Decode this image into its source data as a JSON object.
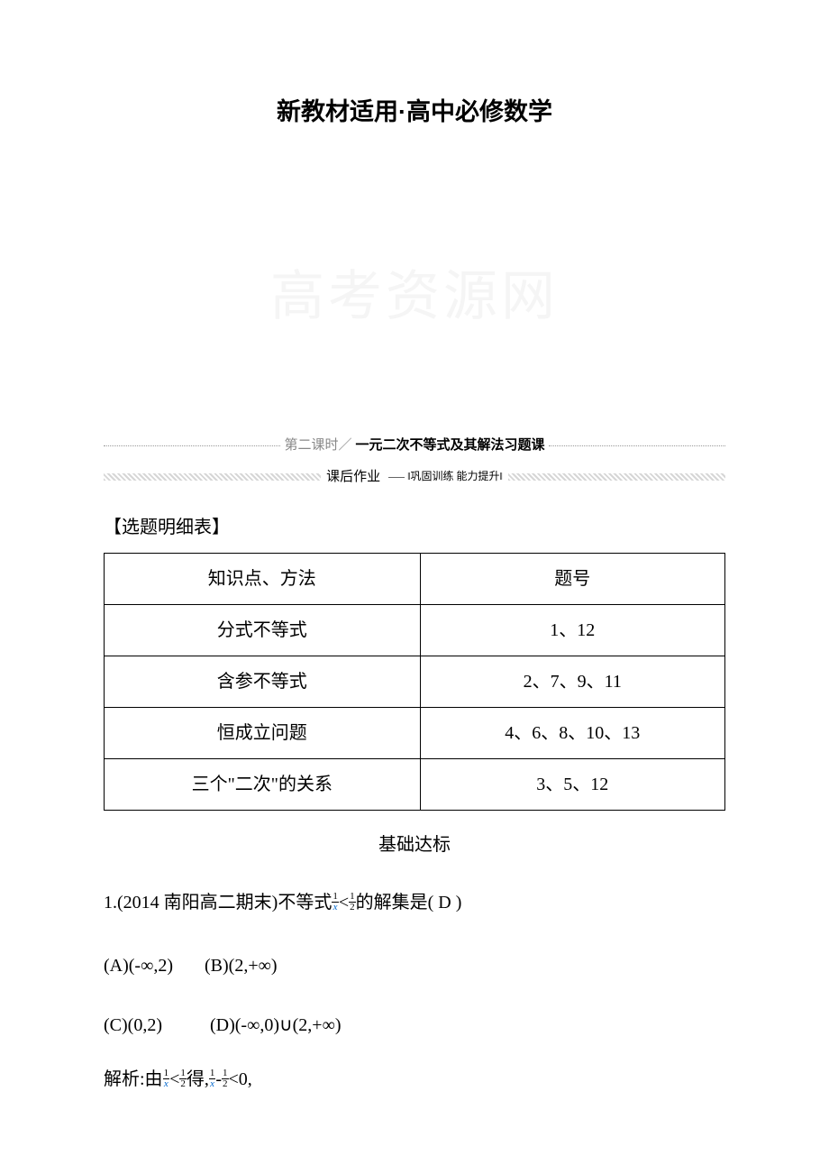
{
  "page": {
    "title": "新教材适用·高中必修数学",
    "watermark": "高考资源网"
  },
  "lesson": {
    "number_label": "第二课时／",
    "title": "一元二次不等式及其解法习题课",
    "homework_label": "课后作业",
    "homework_sub": "‖巩固训练 能力提升‖"
  },
  "detail_table": {
    "heading": "【选题明细表】",
    "headers": {
      "method": "知识点、方法",
      "number": "题号"
    },
    "rows": [
      {
        "method": "分式不等式",
        "number": "1、12"
      },
      {
        "method": "含参不等式",
        "number": "2、7、9、11"
      },
      {
        "method": "恒成立问题",
        "number": "4、6、8、10、13"
      },
      {
        "method": "三个\"二次\"的关系",
        "number": "3、5、12"
      }
    ]
  },
  "section": {
    "title": "基础达标"
  },
  "question1": {
    "prefix": "1.(2014 南阳高二期末)不等式",
    "suffix": "的解集是(  D  )",
    "frac1_num": "1",
    "frac1_den": "x",
    "lt": "<",
    "frac2_num": "1",
    "frac2_den": "2",
    "options": {
      "a": "(A)(-∞,2)",
      "b": "(B)(2,+∞)",
      "c": "(C)(0,2)",
      "d": "(D)(-∞,0)∪(2,+∞)"
    },
    "analysis_prefix": "解析:由",
    "analysis_mid": "得,",
    "analysis_minus": "-",
    "analysis_after": "<0,",
    "a_frac1_num": "1",
    "a_frac1_den": "x",
    "a_frac2_num": "1",
    "a_frac2_den": "2",
    "a_frac3_num": "1",
    "a_frac3_den": "x",
    "a_frac4_num": "1",
    "a_frac4_den": "2"
  }
}
